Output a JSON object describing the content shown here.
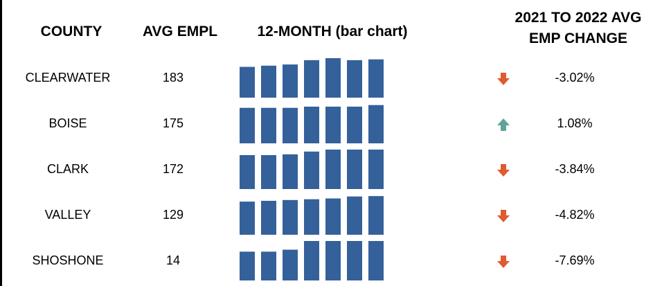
{
  "headers": {
    "county": "COUNTY",
    "avg_empl": "AVG EMPL",
    "twelve_month": "12-MONTH (bar chart)",
    "change_line1": "2021 TO 2022 AVG",
    "change_line2": "EMP CHANGE"
  },
  "colors": {
    "bar": "#35619A",
    "down": "#E05A32",
    "up": "#5FA39A"
  },
  "chart_data": {
    "type": "table",
    "columns": [
      "COUNTY",
      "AVG EMPL",
      "12-MONTH (bar chart)",
      "2021 TO 2022 AVG EMP CHANGE"
    ],
    "rows": [
      {
        "county": "CLEARWATER",
        "avg": "183",
        "change": "-3.02%",
        "direction": "down",
        "icon": "arrow-down-icon",
        "sparkline": {
          "type": "bar",
          "values": [
            0.78,
            0.81,
            0.84,
            0.95,
            1.0,
            0.95,
            0.97
          ]
        }
      },
      {
        "county": "BOISE",
        "avg": "175",
        "change": "1.08%",
        "direction": "up",
        "icon": "arrow-up-icon",
        "sparkline": {
          "type": "bar",
          "values": [
            0.9,
            0.9,
            0.9,
            0.93,
            0.93,
            0.93,
            0.97
          ]
        }
      },
      {
        "county": "CLARK",
        "avg": "172",
        "change": "-3.84%",
        "direction": "down",
        "icon": "arrow-down-icon",
        "sparkline": {
          "type": "bar",
          "values": [
            0.86,
            0.86,
            0.88,
            0.95,
            1.0,
            1.0,
            1.0
          ]
        }
      },
      {
        "county": "VALLEY",
        "avg": "129",
        "change": "-4.82%",
        "direction": "down",
        "icon": "arrow-down-icon",
        "sparkline": {
          "type": "bar",
          "values": [
            0.84,
            0.86,
            0.88,
            0.9,
            0.92,
            0.97,
            0.98
          ]
        }
      },
      {
        "county": "SHOSHONE",
        "avg": "14",
        "change": "-7.69%",
        "direction": "down",
        "icon": "arrow-down-icon",
        "sparkline": {
          "type": "bar",
          "values": [
            0.73,
            0.73,
            0.78,
            1.0,
            1.0,
            1.0,
            1.0
          ]
        }
      }
    ]
  }
}
